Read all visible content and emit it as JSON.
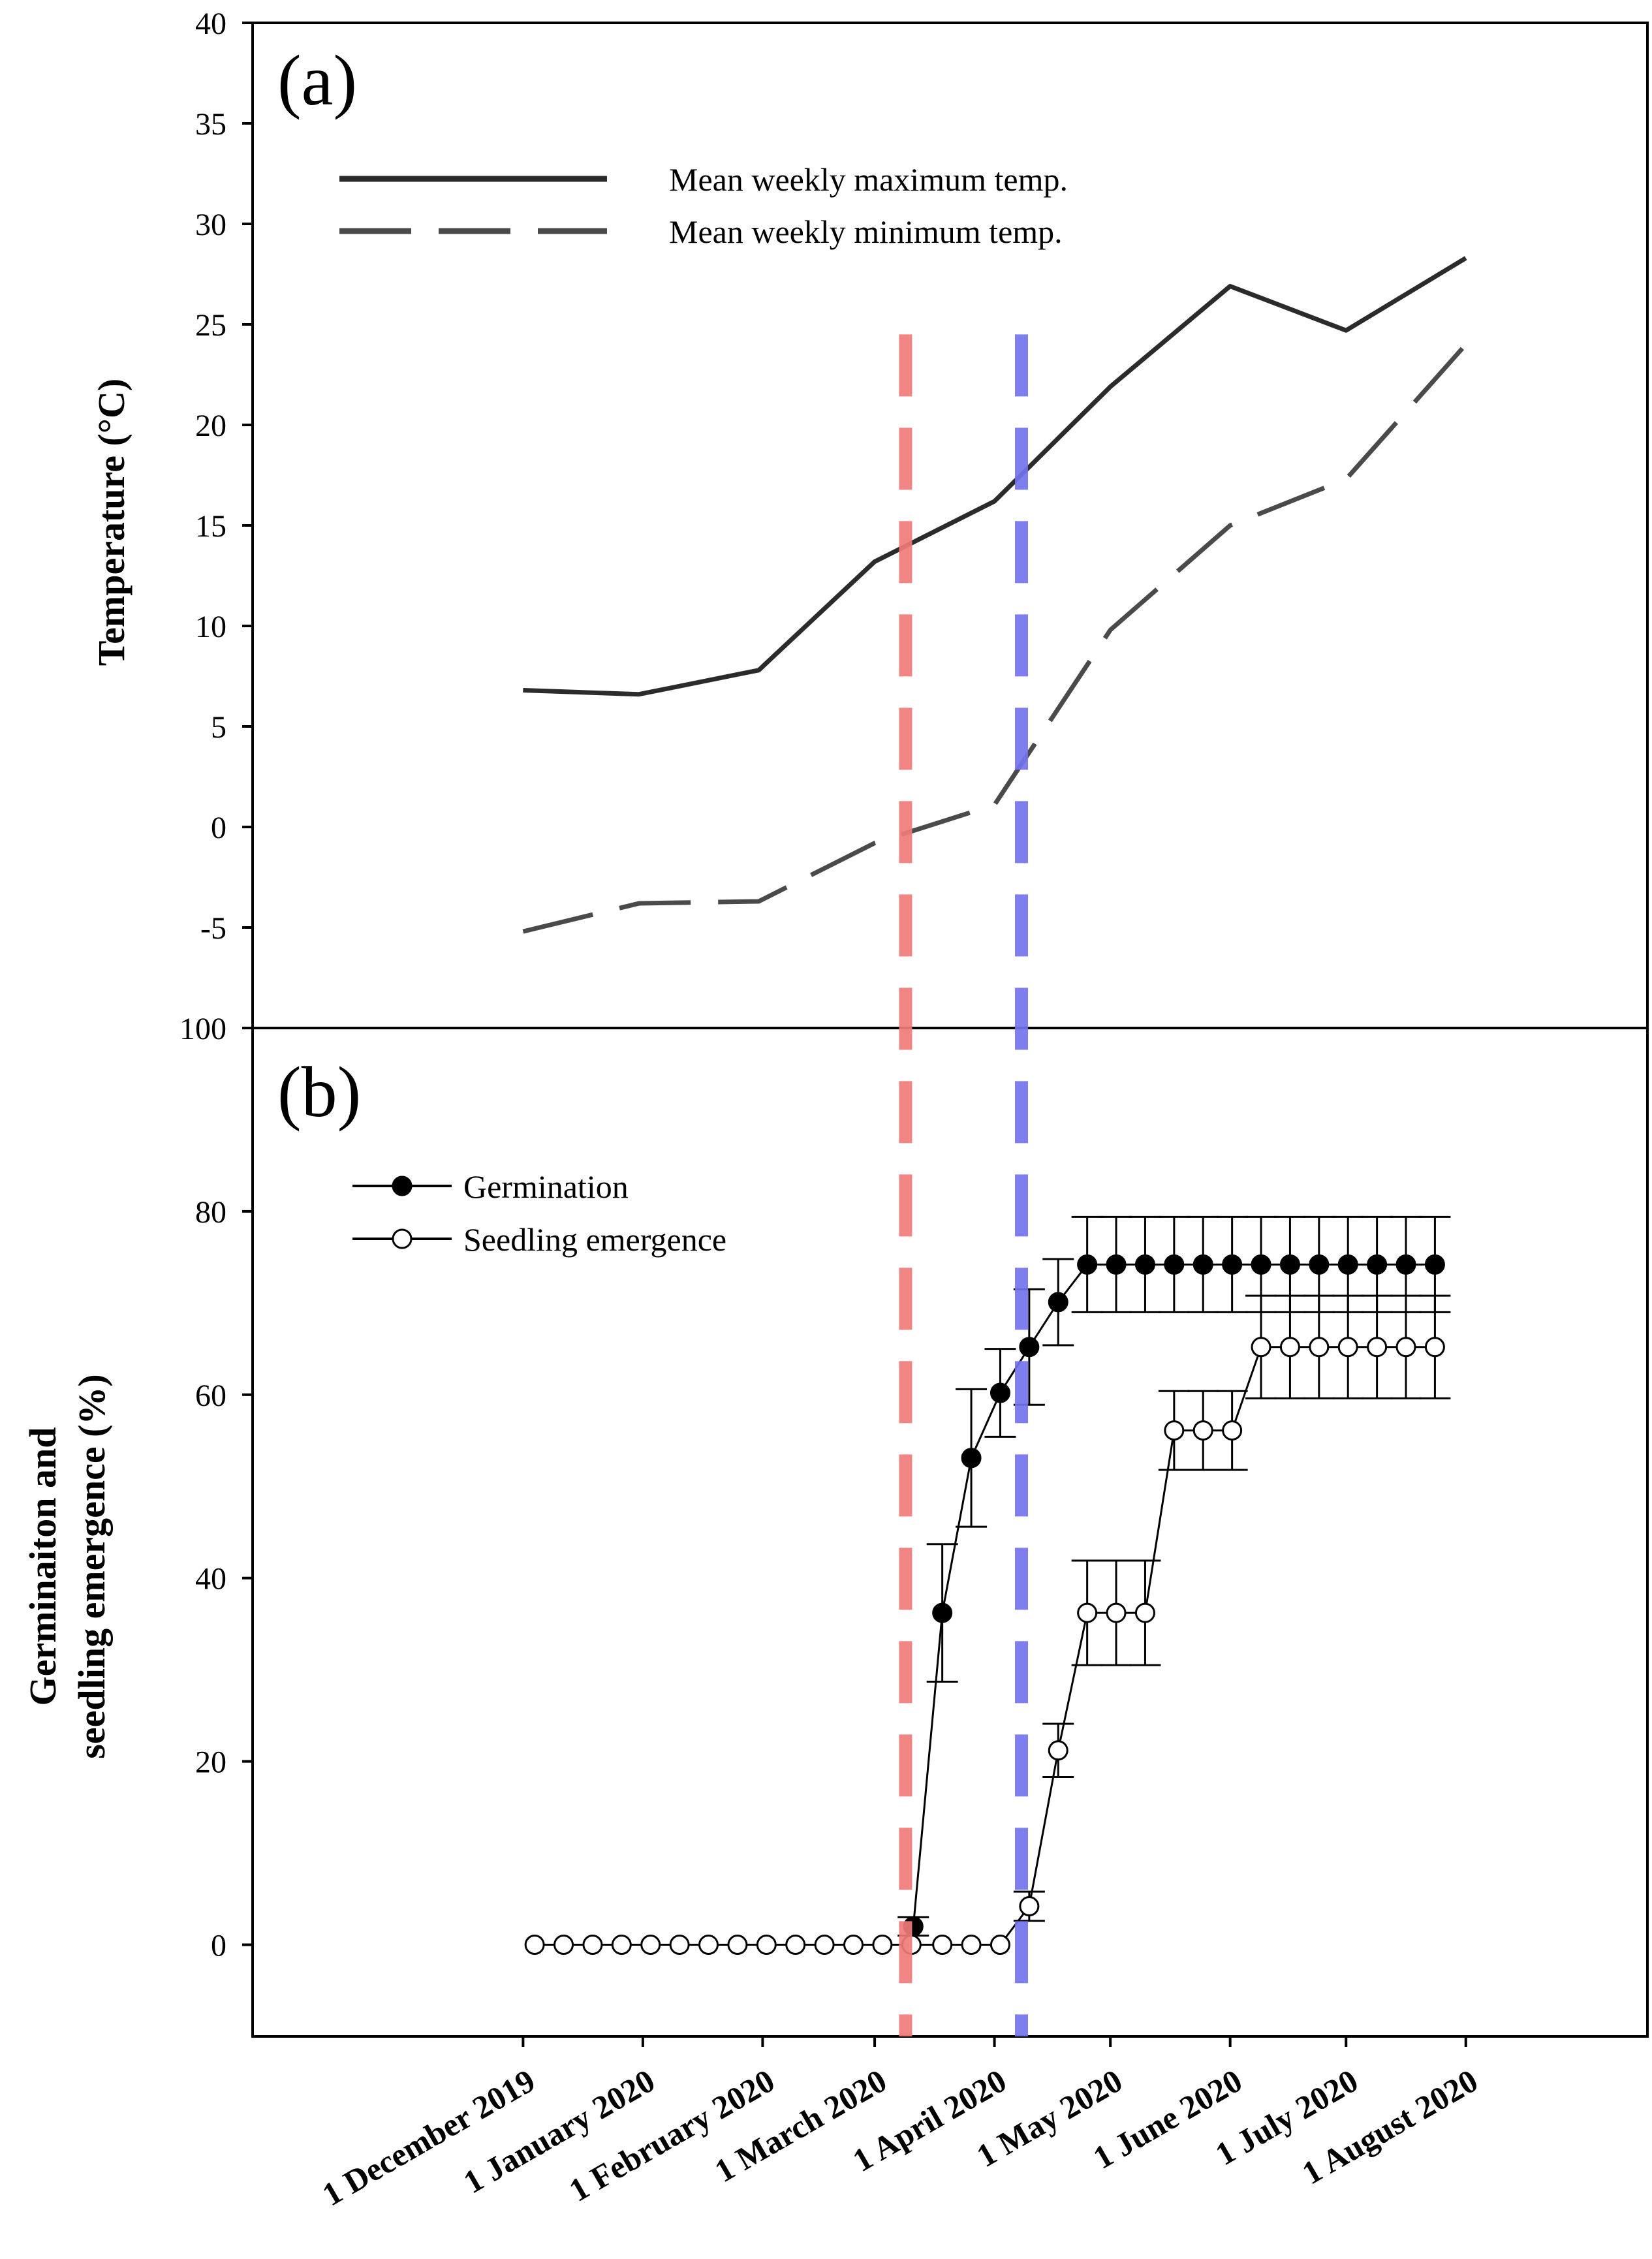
{
  "colors": {
    "axis": "#000000",
    "max_temp_line": "#2b2b2b",
    "min_temp_line": "#4a4a4a",
    "red_marker": "#f07b78",
    "blue_marker": "#7373ee",
    "germination_fill": "#000000",
    "emergence_fill": "#ffffff"
  },
  "chart_data": [
    {
      "type": "line",
      "panel_label": "(a)",
      "ylabel": "Temperature (°C)",
      "ylim": [
        -10,
        40
      ],
      "yticks": [
        -5,
        0,
        5,
        10,
        15,
        20,
        25,
        30,
        35,
        40
      ],
      "xlim_days": [
        -70,
        291
      ],
      "legend": [
        {
          "key": "max",
          "label": "Mean weekly maximum temp.",
          "style": "solid"
        },
        {
          "key": "min",
          "label": "Mean weekly minimum temp.",
          "style": "dashed"
        }
      ],
      "series": [
        {
          "name": "Mean weekly maximum temp.",
          "key": "max",
          "x_days": [
            0,
            30,
            61,
            91,
            122,
            152,
            183,
            213,
            244
          ],
          "values": [
            6.8,
            6.6,
            7.8,
            13.2,
            16.2,
            21.9,
            26.9,
            24.7,
            28.3
          ]
        },
        {
          "name": "Mean weekly minimum temp.",
          "key": "min",
          "x_days": [
            0,
            30,
            61,
            91,
            122,
            152,
            183,
            213,
            244
          ],
          "values": [
            -5.2,
            -3.8,
            -3.7,
            -0.8,
            1.1,
            9.8,
            15.0,
            17.3,
            24.0
          ]
        }
      ]
    },
    {
      "type": "scatter",
      "panel_label": "(b)",
      "ylabel_lines": [
        "Germinaiton and",
        "seedling emergence (%)"
      ],
      "ylim": [
        -10,
        100
      ],
      "yticks": [
        0,
        20,
        40,
        60,
        80,
        100
      ],
      "xlim_days": [
        -70,
        291
      ],
      "xticks": [
        {
          "day": 0,
          "label": "1 December 2019"
        },
        {
          "day": 31,
          "label": "1 January 2020"
        },
        {
          "day": 62,
          "label": "1 February 2020"
        },
        {
          "day": 91,
          "label": "1 March 2020"
        },
        {
          "day": 122,
          "label": "1 April 2020"
        },
        {
          "day": 152,
          "label": "1 May 2020"
        },
        {
          "day": 183,
          "label": "1 June 2020"
        },
        {
          "day": 213,
          "label": "1 July 2020"
        },
        {
          "day": 244,
          "label": "1 August 2020"
        }
      ],
      "legend": [
        {
          "key": "germination",
          "label": "Germination",
          "marker": "filled"
        },
        {
          "key": "emergence",
          "label": "Seedling emergence",
          "marker": "open"
        }
      ],
      "series": [
        {
          "name": "Germination",
          "key": "germination",
          "x_days": [
            101,
            108.5,
            116,
            123.5,
            131,
            138.5,
            146,
            153.5,
            161,
            168.5,
            176,
            183.5,
            191,
            198.5,
            206,
            213.5,
            221,
            228.5,
            236
          ],
          "values": [
            2,
            36.2,
            53.1,
            60.2,
            65.2,
            70.1,
            74.2,
            74.2,
            74.2,
            74.2,
            74.2,
            74.2,
            74.2,
            74.2,
            74.2,
            74.2,
            74.2,
            74.2,
            74.2
          ],
          "errors": [
            1,
            7.5,
            7.5,
            4.8,
            6.3,
            4.7,
            5.2,
            5.2,
            5.2,
            5.2,
            5.2,
            5.2,
            5.2,
            5.2,
            5.2,
            5.2,
            5.2,
            5.2,
            5.2
          ]
        },
        {
          "name": "Seedling emergence",
          "key": "emergence",
          "x_days": [
            3,
            10.5,
            18,
            25.5,
            33,
            40.5,
            48,
            55.5,
            63,
            70.5,
            78,
            85.5,
            93,
            100.5,
            108.5,
            116,
            123.5,
            131,
            138.5,
            146,
            153.5,
            161,
            168.5,
            176,
            183.5,
            191,
            198.5,
            206,
            213.5,
            221,
            228.5,
            236
          ],
          "values": [
            0,
            0,
            0,
            0,
            0,
            0,
            0,
            0,
            0,
            0,
            0,
            0,
            0,
            0,
            0,
            0,
            0,
            4.2,
            21.2,
            36.2,
            36.2,
            36.2,
            56.1,
            56.1,
            56.1,
            65.2,
            65.2,
            65.2,
            65.2,
            65.2,
            65.2,
            65.2
          ],
          "errors": [
            0,
            0,
            0,
            0,
            0,
            0,
            0,
            0,
            0,
            0,
            0,
            0,
            0,
            0,
            0,
            0,
            0,
            1.6,
            2.9,
            5.7,
            5.7,
            5.7,
            4.3,
            4.3,
            4.3,
            5.6,
            5.6,
            5.6,
            5.6,
            5.6,
            5.6,
            5.6
          ]
        }
      ]
    }
  ],
  "reference_lines": [
    {
      "name": "red",
      "day": 99,
      "color_key": "red_marker",
      "top_value_panel_a": 24.5
    },
    {
      "name": "blue",
      "day": 129,
      "color_key": "blue_marker",
      "top_value_panel_a": 24.5
    }
  ]
}
